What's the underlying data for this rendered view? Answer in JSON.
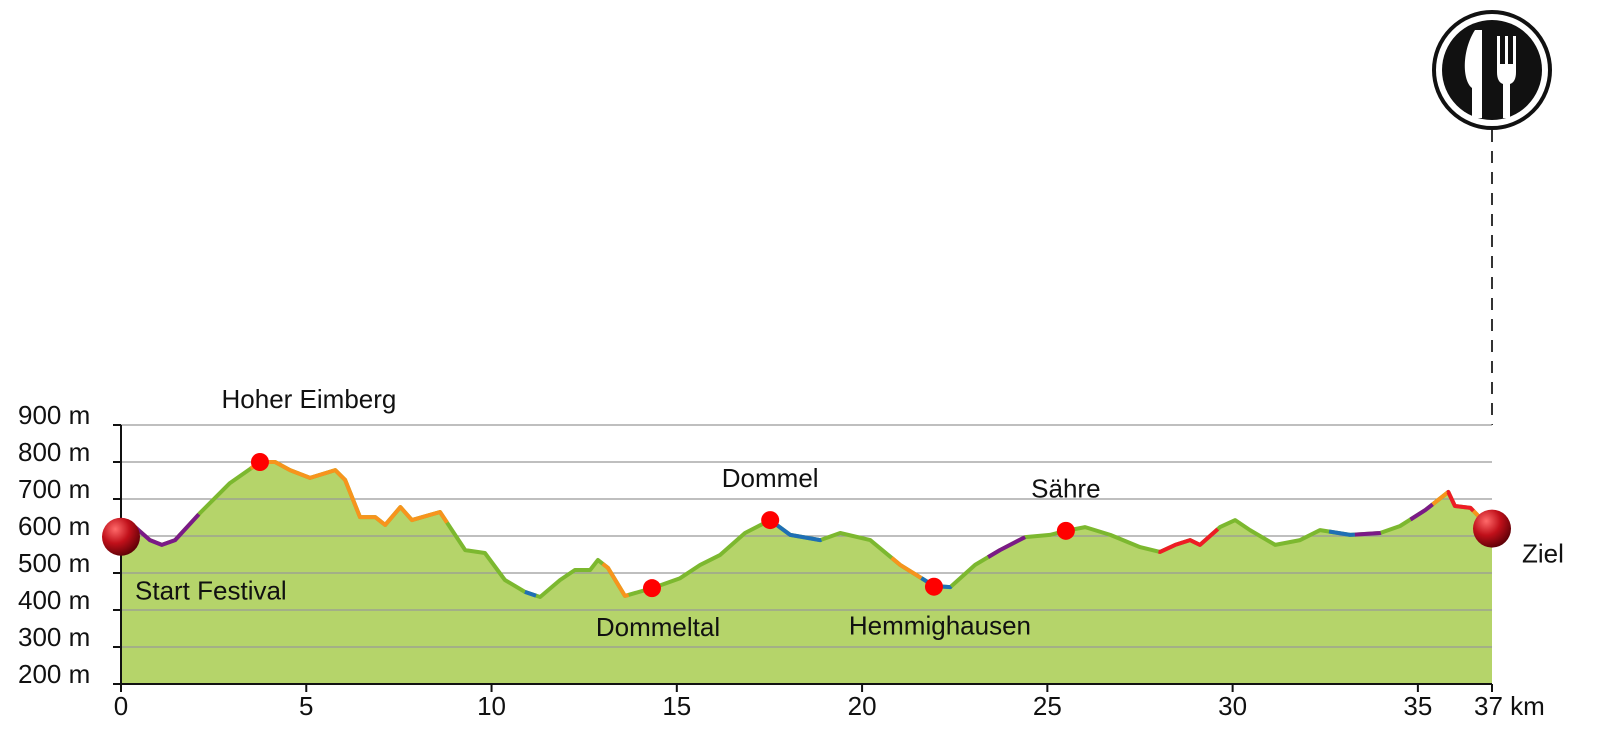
{
  "chart_data": {
    "type": "area",
    "xlim": [
      0,
      37
    ],
    "ylim": [
      200,
      900
    ],
    "xticks": [
      0,
      5,
      10,
      15,
      20,
      25,
      30,
      35,
      {
        "value": 37,
        "label": "37 km"
      }
    ],
    "yticks": [
      {
        "value": 200,
        "label": "200 m"
      },
      {
        "value": 300,
        "label": "300 m"
      },
      {
        "value": 400,
        "label": "400 m"
      },
      {
        "value": 500,
        "label": "500 m"
      },
      {
        "value": 600,
        "label": "600 m"
      },
      {
        "value": 700,
        "label": "700 m"
      },
      {
        "value": 800,
        "label": "800 m"
      },
      {
        "value": 900,
        "label": "900 m"
      }
    ],
    "grid": true,
    "series": [
      {
        "color": "#7cb82f",
        "fill": "#b5d46a",
        "x": [
          0,
          0.38,
          0.78,
          1.1,
          1.46,
          2.13,
          2.94,
          3.75,
          4.16,
          4.56,
          5.1,
          5.78,
          6.05,
          6.45,
          6.86,
          7.13,
          7.54,
          7.85,
          8.61,
          9.29,
          9.82,
          10.36,
          10.9,
          11.31,
          11.85,
          12.25,
          12.66,
          12.87,
          13.14,
          13.6,
          14.33,
          15.09,
          15.63,
          16.17,
          16.84,
          17.52,
          18.06,
          18.87,
          19.41,
          20.22,
          21.03,
          21.94,
          22.38,
          23.05,
          23.72,
          24.4,
          25.07,
          25.5,
          26.02,
          26.7,
          27.5,
          28.04,
          28.45,
          28.85,
          29.12,
          29.66,
          30.07,
          30.47,
          31.15,
          31.82,
          32.36,
          33.17,
          33.98,
          34.52,
          35.2,
          35.82,
          36.0,
          36.42,
          37.0
        ],
        "values": [
          616,
          624,
          589,
          576,
          589,
          662,
          743,
          800,
          800,
          778,
          757,
          778,
          751,
          651,
          651,
          630,
          678,
          643,
          665,
          562,
          554,
          481,
          449,
          435,
          481,
          508,
          508,
          535,
          514,
          438,
          459,
          486,
          522,
          549,
          608,
          643,
          603,
          589,
          608,
          589,
          522,
          465,
          462,
          522,
          562,
          597,
          603,
          614,
          624,
          603,
          570,
          557,
          576,
          589,
          576,
          624,
          643,
          616,
          576,
          589,
          616,
          603,
          608,
          627,
          670,
          719,
          681,
          676,
          616
        ]
      }
    ],
    "segments": [
      {
        "from": 0.3,
        "to": 2.1,
        "color": "#7b1a87"
      },
      {
        "from": 3.5,
        "to": 8.8,
        "color": "#f7941d"
      },
      {
        "from": 10.9,
        "to": 11.2,
        "color": "#1f6fb5"
      },
      {
        "from": 13.0,
        "to": 13.7,
        "color": "#f7941d"
      },
      {
        "from": 17.6,
        "to": 18.9,
        "color": "#1f6fb5"
      },
      {
        "from": 20.8,
        "to": 21.6,
        "color": "#f7941d"
      },
      {
        "from": 21.6,
        "to": 22.4,
        "color": "#1f6fb5"
      },
      {
        "from": 23.4,
        "to": 24.4,
        "color": "#7b1a87"
      },
      {
        "from": 28.0,
        "to": 29.6,
        "color": "#ee1c25"
      },
      {
        "from": 32.6,
        "to": 33.3,
        "color": "#1f6fb5"
      },
      {
        "from": 33.3,
        "to": 34.0,
        "color": "#7b1a87"
      },
      {
        "from": 34.8,
        "to": 35.4,
        "color": "#7b1a87"
      },
      {
        "from": 35.4,
        "to": 35.8,
        "color": "#f7941d"
      },
      {
        "from": 35.8,
        "to": 36.5,
        "color": "#ee1c25"
      },
      {
        "from": 36.5,
        "to": 37.0,
        "color": "#f7941d"
      }
    ],
    "annotations": [
      {
        "text": "Start Festival",
        "x": 0,
        "y": 598,
        "position": "below-right",
        "marker": "endpoint"
      },
      {
        "text": "Hoher Eimberg",
        "x": 3.75,
        "y": 800,
        "position": "above-right",
        "marker": "waypoint"
      },
      {
        "text": "Dommeltal",
        "x": 14.33,
        "y": 459,
        "position": "below",
        "marker": "waypoint"
      },
      {
        "text": "Dommel",
        "x": 17.52,
        "y": 643,
        "position": "above",
        "marker": "waypoint"
      },
      {
        "text": "Hemmighausen",
        "x": 21.94,
        "y": 463,
        "position": "below",
        "marker": "waypoint"
      },
      {
        "text": "Sähre",
        "x": 25.5,
        "y": 614,
        "position": "above",
        "marker": "waypoint"
      },
      {
        "text": "Ziel",
        "x": 37,
        "y": 620,
        "position": "right",
        "marker": "endpoint"
      }
    ]
  }
}
